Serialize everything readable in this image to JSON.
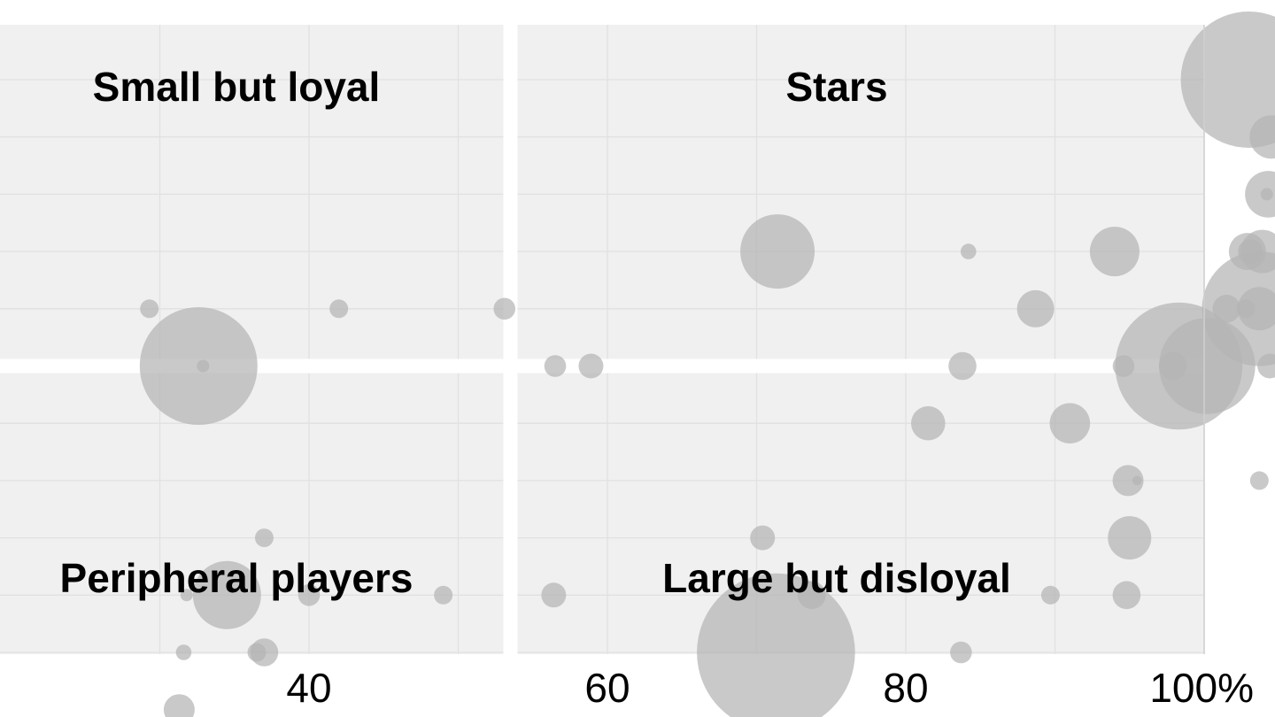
{
  "chart_data": {
    "type": "scatter",
    "subtype": "bubble",
    "title": "",
    "xlabel": "",
    "ylabel": "",
    "xlim": [
      0,
      100
    ],
    "ylim": [
      -0.5,
      10.5
    ],
    "x_ticks": [
      {
        "value": 40,
        "label": "40"
      },
      {
        "value": 60,
        "label": "60"
      },
      {
        "value": 80,
        "label": "80"
      },
      {
        "value": 100,
        "label": "100%"
      }
    ],
    "grid": true,
    "x_gridlines": [
      30,
      40,
      50,
      60,
      70,
      80,
      90,
      100
    ],
    "y_gridlines": [
      0,
      1,
      2,
      3,
      4,
      5,
      6,
      7,
      8,
      9,
      10
    ],
    "quadrant_dividers": {
      "x": 53.5,
      "y": 5
    },
    "quadrant_labels": [
      {
        "label": "Small but loyal",
        "position": "top-left"
      },
      {
        "label": "Stars",
        "position": "top-right"
      },
      {
        "label": "Peripheral players",
        "position": "bottom-left"
      },
      {
        "label": "Large but disloyal",
        "position": "bottom-right"
      }
    ],
    "colors": {
      "panel": "#f0f0f0",
      "grid": "#e1e1e1",
      "divider": "#ffffff",
      "bubble": "#b4b4b4",
      "axis": "#d0d0d0",
      "text": "#000000"
    },
    "points": [
      {
        "x": 29.3,
        "y": 6,
        "size": 0.6
      },
      {
        "x": 32.6,
        "y": 5,
        "size": 3.8
      },
      {
        "x": 32.9,
        "y": 5,
        "size": 0.4
      },
      {
        "x": 42.0,
        "y": 6,
        "size": 0.6
      },
      {
        "x": 53.1,
        "y": 6,
        "size": 0.7
      },
      {
        "x": 56.5,
        "y": 5,
        "size": 0.7
      },
      {
        "x": 58.9,
        "y": 5,
        "size": 0.8
      },
      {
        "x": 37.0,
        "y": 2,
        "size": 0.6
      },
      {
        "x": 34.5,
        "y": 1,
        "size": 2.2
      },
      {
        "x": 31.8,
        "y": 1,
        "size": 0.4
      },
      {
        "x": 40.0,
        "y": 1,
        "size": 0.7
      },
      {
        "x": 49.0,
        "y": 1,
        "size": 0.6
      },
      {
        "x": 56.4,
        "y": 1,
        "size": 0.8
      },
      {
        "x": 31.6,
        "y": 0,
        "size": 0.5
      },
      {
        "x": 36.5,
        "y": 0,
        "size": 0.6
      },
      {
        "x": 37.0,
        "y": 0,
        "size": 0.9
      },
      {
        "x": 31.3,
        "y": -1,
        "size": 1.0
      },
      {
        "x": 71.4,
        "y": 7,
        "size": 2.4
      },
      {
        "x": 84.2,
        "y": 7,
        "size": 0.5
      },
      {
        "x": 94.0,
        "y": 7,
        "size": 1.6
      },
      {
        "x": 88.7,
        "y": 6,
        "size": 1.2
      },
      {
        "x": 83.8,
        "y": 5,
        "size": 0.9
      },
      {
        "x": 81.5,
        "y": 4,
        "size": 1.1
      },
      {
        "x": 91.0,
        "y": 4,
        "size": 1.3
      },
      {
        "x": 70.4,
        "y": 2,
        "size": 0.8
      },
      {
        "x": 73.7,
        "y": 1,
        "size": 0.9
      },
      {
        "x": 71.3,
        "y": 0,
        "size": 5.1
      },
      {
        "x": 83.7,
        "y": 0,
        "size": 0.7
      },
      {
        "x": 89.7,
        "y": 1,
        "size": 0.6
      },
      {
        "x": 94.8,
        "y": 1,
        "size": 0.9
      },
      {
        "x": 95.0,
        "y": 2,
        "size": 1.4
      },
      {
        "x": 94.9,
        "y": 3,
        "size": 1.0
      },
      {
        "x": 95.5,
        "y": 3,
        "size": 0.3
      },
      {
        "x": 94.6,
        "y": 5,
        "size": 0.7
      },
      {
        "x": 98.3,
        "y": 5,
        "size": 4.1
      },
      {
        "x": 100.2,
        "y": 5,
        "size": 3.1
      },
      {
        "x": 97.9,
        "y": 5,
        "size": 0.9
      },
      {
        "x": 101.5,
        "y": 6,
        "size": 0.9
      },
      {
        "x": 102.8,
        "y": 6,
        "size": 0.6
      },
      {
        "x": 103.7,
        "y": 6,
        "size": 3.7
      },
      {
        "x": 103.7,
        "y": 6,
        "size": 1.4
      },
      {
        "x": 102.9,
        "y": 7,
        "size": 1.2
      },
      {
        "x": 103.1,
        "y": 7,
        "size": 0.8
      },
      {
        "x": 103.9,
        "y": 7,
        "size": 1.4
      },
      {
        "x": 104.3,
        "y": 8,
        "size": 1.5
      },
      {
        "x": 104.2,
        "y": 8,
        "size": 0.4
      },
      {
        "x": 104.5,
        "y": 9,
        "size": 1.4
      },
      {
        "x": 103.0,
        "y": 10,
        "size": 4.4
      },
      {
        "x": 104.4,
        "y": 5,
        "size": 0.8
      },
      {
        "x": 103.7,
        "y": 3,
        "size": 0.6
      }
    ]
  }
}
